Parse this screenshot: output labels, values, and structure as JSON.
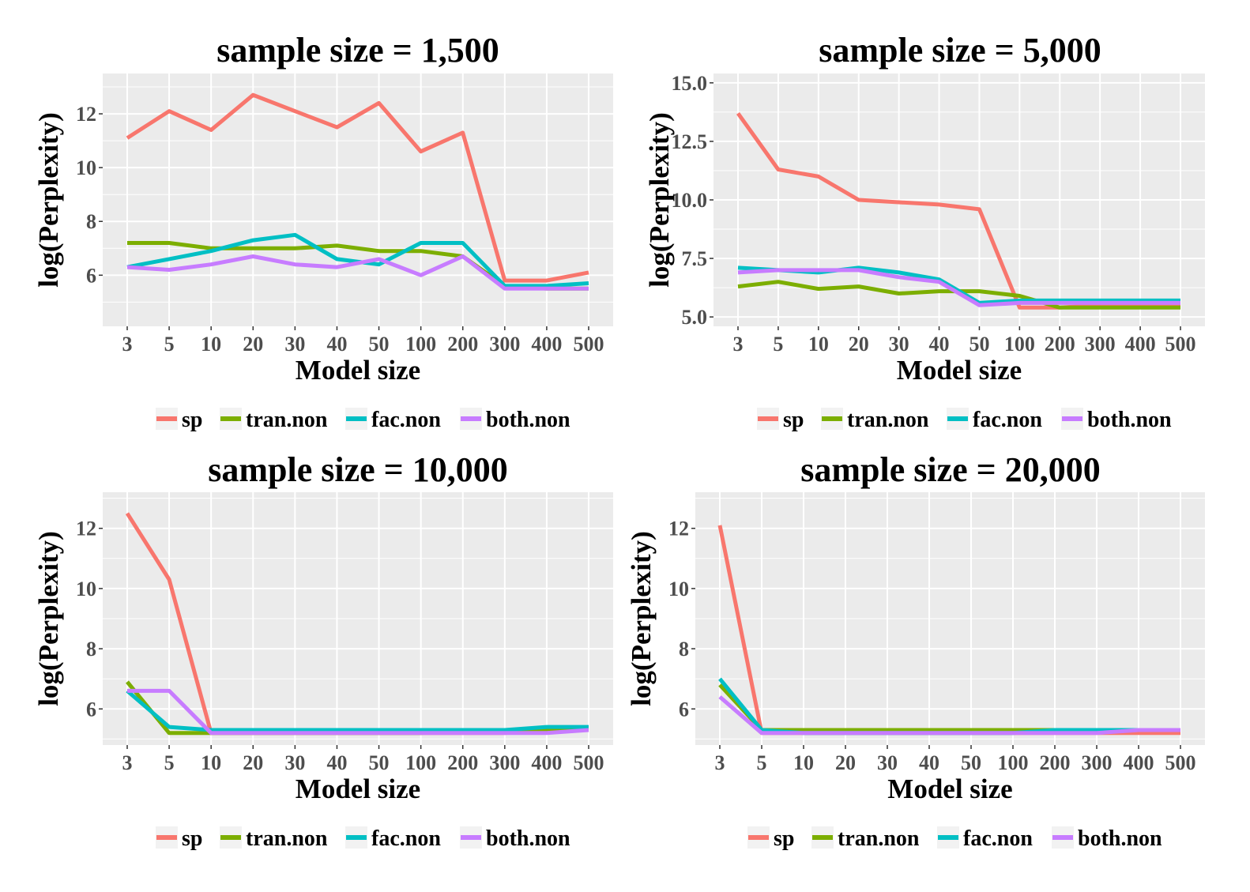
{
  "colors": {
    "panel_bg": "#ebebeb",
    "grid": "#ffffff",
    "sp": "#F8766D",
    "tran.non": "#7CAE00",
    "fac.non": "#00BFC4",
    "both.non": "#C77CFF"
  },
  "chart_data": [
    {
      "type": "line",
      "title": "sample size = 1,500",
      "xlabel": "Model size",
      "ylabel": "log(Perplexity)",
      "categories": [
        "3",
        "5",
        "10",
        "20",
        "30",
        "40",
        "50",
        "100",
        "200",
        "300",
        "400",
        "500"
      ],
      "ylim": [
        4.1,
        13.5
      ],
      "yticks": [
        6,
        8,
        10,
        12
      ],
      "ytick_labels": [
        "6",
        "8",
        "10",
        "12"
      ],
      "legend_position": "bottom",
      "series": [
        {
          "name": "sp",
          "values": [
            11.1,
            12.1,
            11.4,
            12.7,
            12.1,
            11.5,
            12.4,
            10.6,
            11.3,
            5.8,
            5.8,
            6.1
          ]
        },
        {
          "name": "tran.non",
          "values": [
            7.2,
            7.2,
            7.0,
            7.0,
            7.0,
            7.1,
            6.9,
            6.9,
            6.7,
            5.6,
            5.5,
            5.5
          ]
        },
        {
          "name": "fac.non",
          "values": [
            6.3,
            6.6,
            6.9,
            7.3,
            7.5,
            6.6,
            6.4,
            7.2,
            7.2,
            5.6,
            5.6,
            5.7
          ]
        },
        {
          "name": "both.non",
          "values": [
            6.3,
            6.2,
            6.4,
            6.7,
            6.4,
            6.3,
            6.6,
            6.0,
            6.7,
            5.5,
            5.5,
            5.5
          ]
        }
      ]
    },
    {
      "type": "line",
      "title": "sample size = 5,000",
      "xlabel": "Model size",
      "ylabel": "log(Perplexity)",
      "categories": [
        "3",
        "5",
        "10",
        "20",
        "30",
        "40",
        "50",
        "100",
        "200",
        "300",
        "400",
        "500"
      ],
      "ylim": [
        4.6,
        15.4
      ],
      "yticks": [
        5.0,
        7.5,
        10.0,
        12.5,
        15.0
      ],
      "ytick_labels": [
        "5.0",
        "7.5",
        "10.0",
        "12.5",
        "15.0"
      ],
      "legend_position": "bottom",
      "series": [
        {
          "name": "sp",
          "values": [
            13.7,
            11.3,
            11.0,
            10.0,
            9.9,
            9.8,
            9.6,
            5.4,
            5.4,
            5.5,
            5.5,
            5.5
          ]
        },
        {
          "name": "tran.non",
          "values": [
            6.3,
            6.5,
            6.2,
            6.3,
            6.0,
            6.1,
            6.1,
            5.9,
            5.4,
            5.4,
            5.4,
            5.4
          ]
        },
        {
          "name": "fac.non",
          "values": [
            7.1,
            7.0,
            6.9,
            7.1,
            6.9,
            6.6,
            5.6,
            5.7,
            5.7,
            5.7,
            5.7,
            5.7
          ]
        },
        {
          "name": "both.non",
          "values": [
            6.9,
            7.0,
            7.0,
            7.0,
            6.7,
            6.5,
            5.5,
            5.6,
            5.6,
            5.6,
            5.6,
            5.6
          ]
        }
      ]
    },
    {
      "type": "line",
      "title": "sample size = 10,000",
      "xlabel": "Model size",
      "ylabel": "log(Perplexity)",
      "categories": [
        "3",
        "5",
        "10",
        "20",
        "30",
        "40",
        "50",
        "100",
        "200",
        "300",
        "400",
        "500"
      ],
      "ylim": [
        4.8,
        13.2
      ],
      "yticks": [
        6,
        8,
        10,
        12
      ],
      "ytick_labels": [
        "6",
        "8",
        "10",
        "12"
      ],
      "legend_position": "bottom",
      "series": [
        {
          "name": "sp",
          "values": [
            12.5,
            10.3,
            5.2,
            5.2,
            5.2,
            5.2,
            5.2,
            5.2,
            5.2,
            5.2,
            5.3,
            5.3
          ]
        },
        {
          "name": "tran.non",
          "values": [
            6.9,
            5.2,
            5.2,
            5.2,
            5.2,
            5.2,
            5.2,
            5.2,
            5.3,
            5.3,
            5.3,
            5.3
          ]
        },
        {
          "name": "fac.non",
          "values": [
            6.6,
            5.4,
            5.3,
            5.3,
            5.3,
            5.3,
            5.3,
            5.3,
            5.3,
            5.3,
            5.4,
            5.4
          ]
        },
        {
          "name": "both.non",
          "values": [
            6.6,
            6.6,
            5.2,
            5.2,
            5.2,
            5.2,
            5.2,
            5.2,
            5.2,
            5.2,
            5.2,
            5.3
          ]
        }
      ]
    },
    {
      "type": "line",
      "title": "sample size = 20,000",
      "xlabel": "Model size",
      "ylabel": "log(Perplexity)",
      "categories": [
        "3",
        "5",
        "10",
        "20",
        "30",
        "40",
        "50",
        "100",
        "200",
        "300",
        "400",
        "500"
      ],
      "ylim": [
        4.8,
        13.2
      ],
      "yticks": [
        6,
        8,
        10,
        12
      ],
      "ytick_labels": [
        "6",
        "8",
        "10",
        "12"
      ],
      "legend_position": "bottom",
      "series": [
        {
          "name": "sp",
          "values": [
            12.1,
            5.2,
            5.2,
            5.2,
            5.2,
            5.2,
            5.2,
            5.2,
            5.2,
            5.2,
            5.2,
            5.2
          ]
        },
        {
          "name": "tran.non",
          "values": [
            6.8,
            5.3,
            5.3,
            5.3,
            5.3,
            5.3,
            5.3,
            5.3,
            5.3,
            5.3,
            5.3,
            5.3
          ]
        },
        {
          "name": "fac.non",
          "values": [
            7.0,
            5.3,
            5.2,
            5.2,
            5.2,
            5.2,
            5.2,
            5.2,
            5.3,
            5.3,
            5.3,
            5.3
          ]
        },
        {
          "name": "both.non",
          "values": [
            6.4,
            5.2,
            5.2,
            5.2,
            5.2,
            5.2,
            5.2,
            5.2,
            5.2,
            5.2,
            5.3,
            5.3
          ]
        }
      ]
    }
  ]
}
